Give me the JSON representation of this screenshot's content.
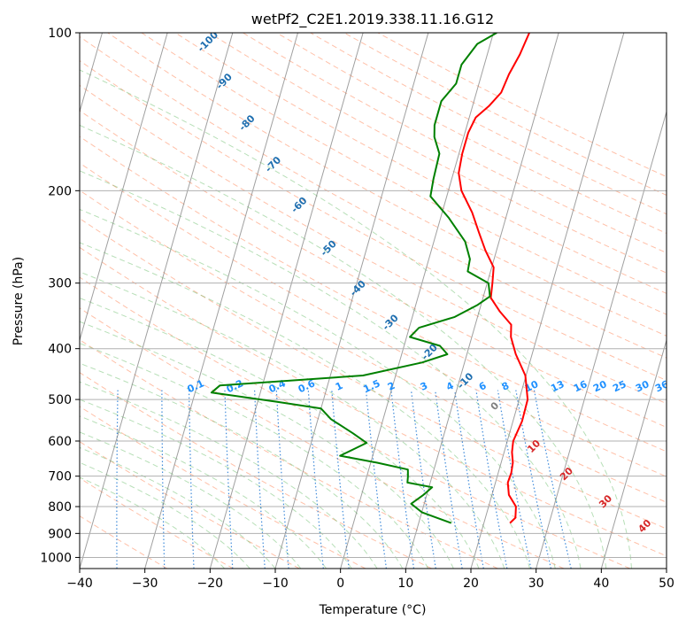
{
  "chart_data": {
    "type": "line",
    "title": "wetPf2_C2E1.2019.338.11.16.G12",
    "xlabel": "Temperature (°C)",
    "ylabel": "Pressure (hPa)",
    "xlim": [
      -40,
      50
    ],
    "ylim": [
      1050,
      100
    ],
    "y_scale": "log",
    "x_ticks": [
      "−40",
      "−30",
      "−20",
      "−10",
      "0",
      "10",
      "20",
      "30",
      "40",
      "50"
    ],
    "x_tick_values": [
      -40,
      -30,
      -20,
      -10,
      0,
      10,
      20,
      30,
      40,
      50
    ],
    "y_ticks": [
      "100",
      "200",
      "300",
      "400",
      "500",
      "600",
      "700",
      "800",
      "900",
      "1000"
    ],
    "y_tick_values": [
      100,
      200,
      300,
      400,
      500,
      600,
      700,
      800,
      900,
      1000
    ],
    "grid": true,
    "colors": {
      "temperature": "#ff0000",
      "dewpoint": "#008000",
      "dry_adiabat": "#ff8c60",
      "moist_adiabat": "#5fb85f",
      "mixing_ratio": "#1f77d4",
      "isotherm": "#808080",
      "dry_adiabat_label": "#1f6fb0",
      "mixing_ratio_label": "#1e90ff",
      "isotherm_label": "#d62728"
    },
    "series": [
      {
        "points": [
          [
            24,
            860
          ],
          [
            24.6,
            840
          ],
          [
            24.2,
            800
          ],
          [
            22.6,
            760
          ],
          [
            21.9,
            720
          ],
          [
            22.0,
            690
          ],
          [
            21.8,
            660
          ],
          [
            21.2,
            630
          ],
          [
            20.9,
            600
          ],
          [
            21.4,
            550
          ],
          [
            21.3,
            500
          ],
          [
            19.9,
            450
          ],
          [
            17.5,
            410
          ],
          [
            16.0,
            380
          ],
          [
            15.5,
            360
          ],
          [
            13.2,
            340
          ],
          [
            11.2,
            320
          ],
          [
            10.8,
            300
          ],
          [
            10.3,
            280
          ],
          [
            8.3,
            260
          ],
          [
            6.5,
            240
          ],
          [
            4.6,
            220
          ],
          [
            2.0,
            200
          ],
          [
            0.8,
            185
          ],
          [
            0.5,
            170
          ],
          [
            0.5,
            155
          ],
          [
            1.0,
            145
          ],
          [
            2.5,
            138
          ],
          [
            3.8,
            130
          ],
          [
            4.2,
            120
          ],
          [
            5.0,
            110
          ],
          [
            5.5,
            100
          ]
        ]
      },
      {
        "points": [
          [
            15,
            860
          ],
          [
            12.5,
            840
          ],
          [
            10.0,
            820
          ],
          [
            8,
            790
          ],
          [
            9.5,
            760
          ],
          [
            10.5,
            735
          ],
          [
            6.5,
            720
          ],
          [
            6.3,
            700
          ],
          [
            6.0,
            680
          ],
          [
            1.0,
            660
          ],
          [
            -5.0,
            640
          ],
          [
            -3.0,
            620
          ],
          [
            -1.5,
            605
          ],
          [
            -4.0,
            580
          ],
          [
            -8.0,
            545
          ],
          [
            -10.0,
            520
          ],
          [
            -17.0,
            505
          ],
          [
            -27.5,
            485
          ],
          [
            -26.5,
            470
          ],
          [
            -5.0,
            450
          ],
          [
            3.5,
            425
          ],
          [
            7.0,
            410
          ],
          [
            5.5,
            395
          ],
          [
            0.5,
            380
          ],
          [
            1.5,
            365
          ],
          [
            6.5,
            348
          ],
          [
            9.5,
            330
          ],
          [
            11.0,
            318
          ],
          [
            10.2,
            300
          ],
          [
            6.5,
            285
          ],
          [
            6.3,
            270
          ],
          [
            4.8,
            250
          ],
          [
            1.2,
            225
          ],
          [
            -2.5,
            205
          ],
          [
            -2.8,
            190
          ],
          [
            -3.0,
            170
          ],
          [
            -4.5,
            158
          ],
          [
            -5.0,
            150
          ],
          [
            -5.0,
            135
          ],
          [
            -3.5,
            125
          ],
          [
            -3.5,
            115
          ],
          [
            -2.0,
            105
          ],
          [
            0.5,
            100
          ]
        ]
      }
    ],
    "dry_adiabat_labels": [
      "-100",
      "-90",
      "-80",
      "-70",
      "-60",
      "-50",
      "-40",
      "-30",
      "-20",
      "-10",
      "0",
      "10",
      "20",
      "30",
      "40"
    ],
    "dry_adiabat_label_positions": [
      [
        -20,
        105
      ],
      [
        -17.5,
        125
      ],
      [
        -14,
        150
      ],
      [
        -10,
        180
      ],
      [
        -6,
        215
      ],
      [
        -1.5,
        260
      ],
      [
        3,
        310
      ],
      [
        8,
        360
      ],
      [
        14,
        410
      ],
      [
        19.5,
        465
      ],
      [
        24,
        520
      ],
      [
        30,
        620
      ],
      [
        35,
        700
      ],
      [
        41,
        790
      ],
      [
        47,
        880
      ]
    ],
    "mixing_ratio_labels": [
      "0.1",
      "0.2",
      "0.4",
      "0.6",
      "1",
      "1.5",
      "2",
      "3",
      "4",
      "6",
      "8",
      "10",
      "13",
      "16",
      "20",
      "25",
      "30",
      "36"
    ],
    "mixing_ratio_label_positions": [
      [
        -22,
        478
      ],
      [
        -16,
        478
      ],
      [
        -9.5,
        478
      ],
      [
        -5,
        478
      ],
      [
        0,
        478
      ],
      [
        5,
        478
      ],
      [
        8,
        478
      ],
      [
        13,
        478
      ],
      [
        17,
        478
      ],
      [
        22,
        478
      ],
      [
        25.5,
        478
      ],
      [
        29.5,
        478
      ],
      [
        33.5,
        478
      ],
      [
        37,
        478
      ],
      [
        40,
        478
      ],
      [
        43,
        478
      ],
      [
        46.5,
        478
      ],
      [
        49.5,
        478
      ]
    ],
    "isotherm_labels": [
      "10",
      "20",
      "30",
      "40"
    ]
  }
}
